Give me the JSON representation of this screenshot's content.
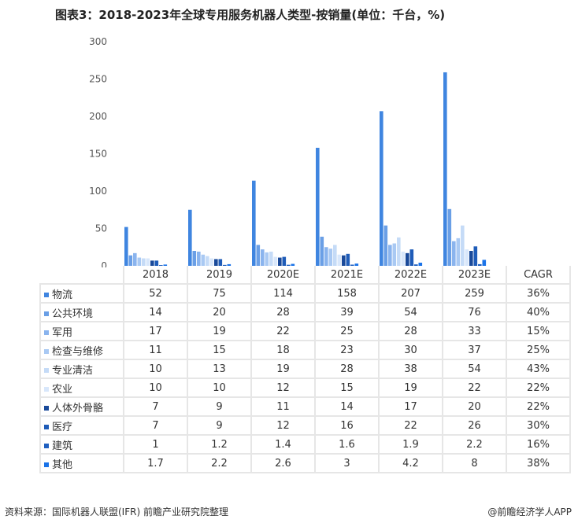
{
  "chart_data": {
    "type": "bar",
    "title": "图表3：2018-2023年全球专用服务机器人类型-按销量(单位：千台，%)",
    "categories": [
      "2018",
      "2019",
      "2020E",
      "2021E",
      "2022E",
      "2023E"
    ],
    "extra_column": "CAGR",
    "ylim": [
      0,
      300
    ],
    "yticks": [
      0,
      50,
      100,
      150,
      200,
      250,
      300
    ],
    "grid": false,
    "series": [
      {
        "name": "物流",
        "color": "#3f85e0",
        "values": [
          52,
          75,
          114,
          158,
          207,
          259
        ],
        "cagr": "36%"
      },
      {
        "name": "公共环境",
        "color": "#6a9fe6",
        "values": [
          14,
          20,
          28,
          39,
          54,
          76
        ],
        "cagr": "40%"
      },
      {
        "name": "军用",
        "color": "#8ab4ee",
        "values": [
          17,
          19,
          22,
          25,
          28,
          33
        ],
        "cagr": "15%"
      },
      {
        "name": "检查与维修",
        "color": "#a9c9f3",
        "values": [
          11,
          15,
          18,
          23,
          30,
          37
        ],
        "cagr": "25%"
      },
      {
        "name": "专业清洁",
        "color": "#c5dbf7",
        "values": [
          10,
          13,
          19,
          28,
          38,
          54
        ],
        "cagr": "43%"
      },
      {
        "name": "农业",
        "color": "#d8e7fb",
        "values": [
          10,
          10,
          12,
          15,
          19,
          22
        ],
        "cagr": "22%"
      },
      {
        "name": "人体外骨骼",
        "color": "#1a4a9a",
        "values": [
          7,
          9,
          11,
          14,
          17,
          20
        ],
        "cagr": "22%"
      },
      {
        "name": "医疗",
        "color": "#1f5cb8",
        "values": [
          7,
          9,
          12,
          16,
          22,
          26
        ],
        "cagr": "30%"
      },
      {
        "name": "建筑",
        "color": "#2060c0",
        "values": [
          1,
          1.2,
          1.4,
          1.6,
          1.9,
          2.2
        ],
        "cagr": "16%"
      },
      {
        "name": "其他",
        "color": "#1a73e8",
        "values": [
          1.7,
          2.2,
          2.6,
          3,
          4.2,
          8
        ],
        "cagr": "38%"
      }
    ]
  },
  "footer": {
    "source": "资料来源：国际机器人联盟(IFR)  前瞻产业研究院整理",
    "brand": "@前瞻经济学人APP"
  }
}
